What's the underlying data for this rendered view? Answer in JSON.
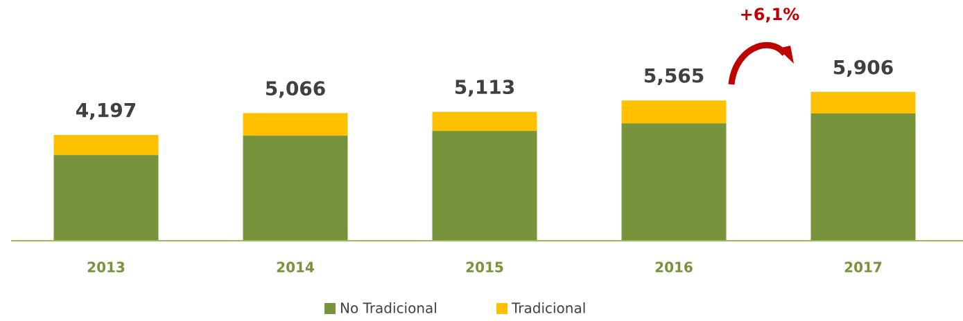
{
  "chart_data": {
    "type": "stacked_bar",
    "categories": [
      "2013",
      "2014",
      "2015",
      "2016",
      "2017"
    ],
    "series": [
      {
        "name": "No Tradicional",
        "color": "#77933c",
        "values": [
          3400,
          4170,
          4360,
          4660,
          5050
        ]
      },
      {
        "name": "Tradicional",
        "color": "#ffc000",
        "values": [
          797,
          896,
          753,
          905,
          856
        ]
      }
    ],
    "totals": [
      4197,
      5066,
      5113,
      5565,
      5906
    ],
    "total_labels": [
      "4,197",
      "5,066",
      "5,113",
      "5,565",
      "5,906"
    ],
    "annotation": "+6,1%",
    "ylim": [
      0,
      8700
    ]
  }
}
